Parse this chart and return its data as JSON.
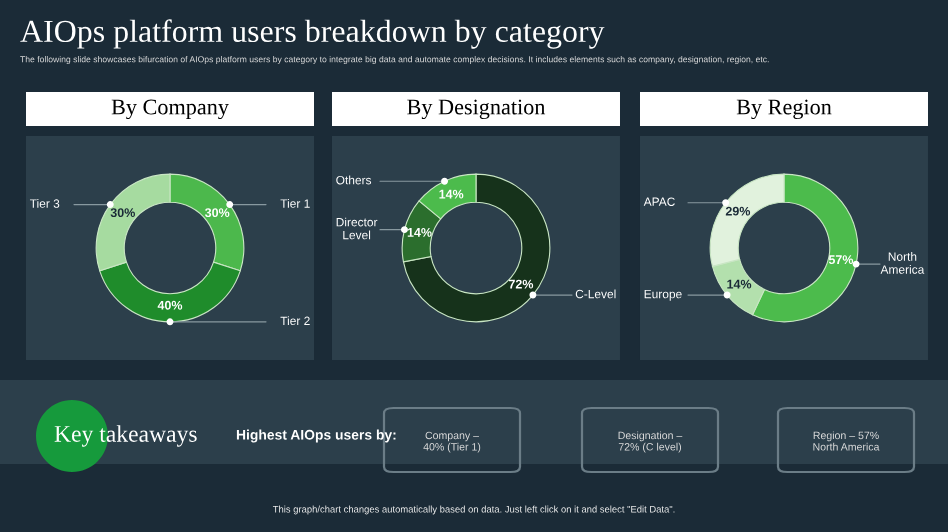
{
  "chart_data": [
    {
      "type": "other",
      "title": "AIOps platform users breakdown by category",
      "subtitle": "The following slide showcases bifurcation of AIOps platform users by category to integrate big data and automate complex decisions. It includes elements such as company, designation, region, etc."
    },
    {
      "type": "donut",
      "title": "By Company",
      "categories": [
        "Tier 1",
        "Tier 2",
        "Tier 3"
      ],
      "values": [
        30,
        40,
        30
      ],
      "colors": [
        "#4cb84c",
        "#1f8c2b",
        "#a6dba0"
      ],
      "value_labels": [
        "30%",
        "40%",
        "30%"
      ]
    },
    {
      "type": "donut",
      "title": "By Designation",
      "categories": [
        "C-Level",
        "Director\nLevel",
        "Others"
      ],
      "values": [
        72,
        14,
        14
      ],
      "colors": [
        "#16321b",
        "#2b6e2d",
        "#4cbb4c"
      ],
      "value_labels": [
        "72%",
        "14%",
        "14%"
      ]
    },
    {
      "type": "donut",
      "title": "By Region",
      "categories": [
        "North\nAmerica",
        "Europe",
        "APAC"
      ],
      "values": [
        57,
        14,
        29
      ],
      "colors": [
        "#4cbb4c",
        "#b3e0ad",
        "#e1f2dd"
      ],
      "value_labels": [
        "57%",
        "14%",
        "29%"
      ]
    },
    {
      "type": "other",
      "annotations": [
        "Key takeaways",
        "Highest AIOps users by:",
        "Company –\n40% (Tier 1)",
        "Designation –\n72% (C level)",
        "Region – 57%\nNorth America",
        "This graph/chart changes automatically based on data. Just left click on it and select \"Edit Data\"."
      ]
    }
  ]
}
